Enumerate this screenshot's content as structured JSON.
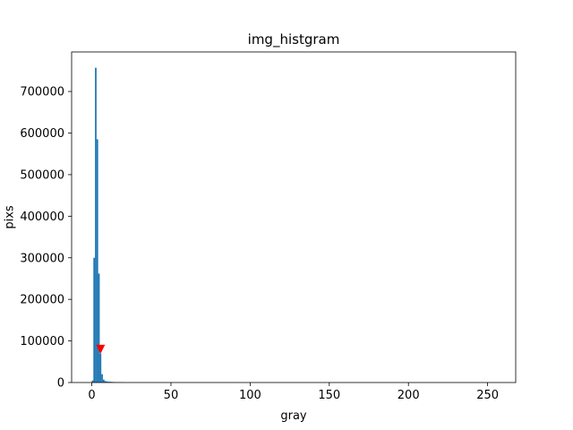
{
  "chart_data": {
    "type": "bar",
    "title": "img_histgram",
    "xlabel": "gray",
    "ylabel": "pixs",
    "xlim": [
      -12.75,
      267.75
    ],
    "ylim": [
      0,
      795000
    ],
    "xticks": [
      0,
      50,
      100,
      150,
      200,
      250
    ],
    "yticks": [
      0,
      100000,
      200000,
      300000,
      400000,
      500000,
      600000,
      700000
    ],
    "bar_width": 1,
    "bar_color": "#1f77b4",
    "x": [
      0,
      1,
      2,
      3,
      4,
      5,
      6,
      7,
      8,
      9,
      10,
      11,
      12,
      13,
      14,
      15,
      16,
      17,
      18,
      19,
      20
    ],
    "values": [
      5000,
      300000,
      757000,
      585000,
      262000,
      70000,
      20000,
      7000,
      3500,
      2500,
      2000,
      1800,
      1500,
      1300,
      1100,
      1000,
      900,
      700,
      600,
      500,
      400
    ],
    "marker": {
      "x": 5,
      "y": 80000,
      "shape": "triangle-down",
      "color": "#ff0000"
    },
    "grid": false,
    "legend": "none"
  }
}
